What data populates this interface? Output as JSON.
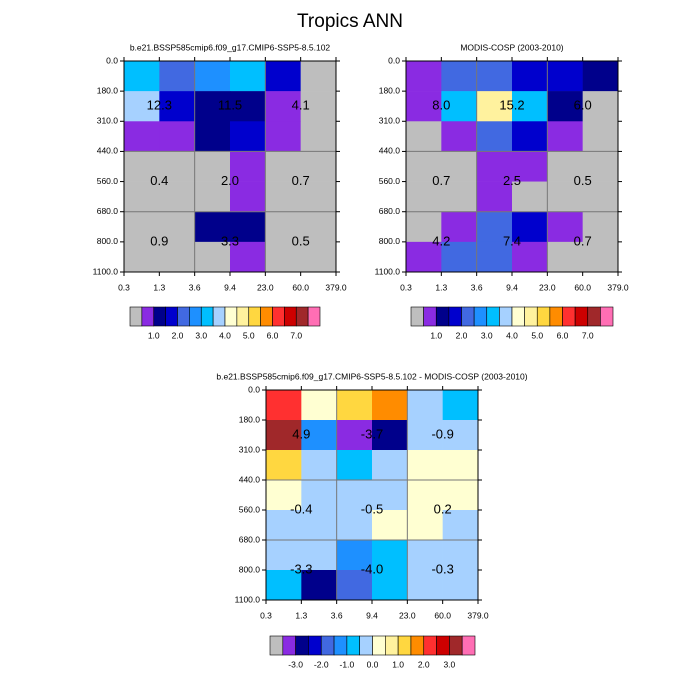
{
  "title": "Tropics ANN",
  "chart_data": [
    {
      "type": "heatmap",
      "title": "b.e21.BSSP585cmip6.f09_g17.CMIP6-SSP5-8.5.102",
      "xbins": [
        0.3,
        1.3,
        3.6,
        9.4,
        {
          "value": 23,
          "label": "23.0"
        },
        {
          "value": 60,
          "label": "60.0"
        },
        {
          "value": 379,
          "label": "379.0"
        }
      ],
      "ybins": [
        {
          "value": 0,
          "label": "0.0"
        },
        {
          "value": 180,
          "label": "180.0"
        },
        {
          "value": 310,
          "label": "310.0"
        },
        {
          "value": 440,
          "label": "440.0"
        },
        {
          "value": 560,
          "label": "560.0"
        },
        {
          "value": 680,
          "label": "680.0"
        },
        {
          "value": 800,
          "label": "800.0"
        },
        {
          "value": 1100,
          "label": "1100.0"
        }
      ],
      "values": [
        [
          3.2,
          2.2,
          2.7,
          3.2,
          1.7,
          0.3
        ],
        [
          3.7,
          1.7,
          1.3,
          1.4,
          0.8,
          0.2
        ],
        [
          0.8,
          0.7,
          1.2,
          1.7,
          0.7,
          0.3
        ],
        [
          0.1,
          0.1,
          0.2,
          0.7,
          0.2,
          0.1
        ],
        [
          0.1,
          0.1,
          0.3,
          0.8,
          0.2,
          0.2
        ],
        [
          0.2,
          0.3,
          1.2,
          1.2,
          0.1,
          0.1
        ],
        [
          0.2,
          0.2,
          0.4,
          0.5,
          0.2,
          0.1
        ]
      ],
      "sums": [
        [
          12.3,
          11.5,
          4.1
        ],
        [
          0.4,
          2.0,
          0.7
        ],
        [
          0.9,
          3.3,
          0.5
        ]
      ],
      "sum_labels": [
        [
          "12.3",
          "11.5",
          "4.1"
        ],
        [
          "0.4",
          "2.0",
          "0.7"
        ],
        [
          "0.9",
          "3.3",
          "0.5"
        ]
      ],
      "colorbar": {
        "levels": [
          0.5,
          1,
          1.5,
          2,
          2.5,
          3,
          3.5,
          4,
          4.5,
          5,
          5.5,
          6,
          6.5,
          7,
          7.5
        ],
        "colors": [
          "#bebebe",
          "#8a2be2",
          "#00008b",
          "#0000cd",
          "#4169e1",
          "#1e90ff",
          "#00bfff",
          "#a6d1ff",
          "#ffffd2",
          "#fff29e",
          "#ffd740",
          "#ff8c00",
          "#ff3030",
          "#cd0000",
          "#a0282a",
          "#ff6eb4"
        ],
        "ticks": [
          {
            "value": 1,
            "label": "1.0"
          },
          {
            "value": 2,
            "label": "2.0"
          },
          {
            "value": 3,
            "label": "3.0"
          },
          {
            "value": 4,
            "label": "4.0"
          },
          {
            "value": 5,
            "label": "5.0"
          },
          {
            "value": 6,
            "label": "6.0"
          },
          {
            "value": 7,
            "label": "7.0"
          }
        ]
      }
    },
    {
      "type": "heatmap",
      "title": "MODIS-COSP (2003-2010)",
      "xbins": [
        0.3,
        1.3,
        3.6,
        9.4,
        {
          "value": 23,
          "label": "23.0"
        },
        {
          "value": 60,
          "label": "60.0"
        },
        {
          "value": 379,
          "label": "379.0"
        }
      ],
      "ybins": [
        {
          "value": 0,
          "label": "0.0"
        },
        {
          "value": 180,
          "label": "180.0"
        },
        {
          "value": 310,
          "label": "310.0"
        },
        {
          "value": 440,
          "label": "440.0"
        },
        {
          "value": 560,
          "label": "560.0"
        },
        {
          "value": 680,
          "label": "680.0"
        },
        {
          "value": 800,
          "label": "800.0"
        },
        {
          "value": 1100,
          "label": "1100.0"
        }
      ],
      "values": [
        [
          0.8,
          2.2,
          2.1,
          1.6,
          1.8,
          1.4
        ],
        [
          0.8,
          3.2,
          4.6,
          3.2,
          1.2,
          0.4
        ],
        [
          0.3,
          0.7,
          2.1,
          1.6,
          0.8,
          0.4
        ],
        [
          0.2,
          0.2,
          0.7,
          0.6,
          0.1,
          0.1
        ],
        [
          0.1,
          0.2,
          0.8,
          0.4,
          0.2,
          0.1
        ],
        [
          0.3,
          0.8,
          2.2,
          1.9,
          0.5,
          0.1
        ],
        [
          0.8,
          2.3,
          2.4,
          0.9,
          0.1,
          0.0
        ]
      ],
      "sums": [
        [
          8.0,
          15.2,
          6.0
        ],
        [
          0.7,
          2.5,
          0.5
        ],
        [
          4.2,
          7.4,
          0.7
        ]
      ],
      "sum_labels": [
        [
          "8.0",
          "15.2",
          "6.0"
        ],
        [
          "0.7",
          "2.5",
          "0.5"
        ],
        [
          "4.2",
          "7.4",
          "0.7"
        ]
      ],
      "colorbar": {
        "levels": [
          0.5,
          1,
          1.5,
          2,
          2.5,
          3,
          3.5,
          4,
          4.5,
          5,
          5.5,
          6,
          6.5,
          7,
          7.5
        ],
        "colors": [
          "#bebebe",
          "#8a2be2",
          "#00008b",
          "#0000cd",
          "#4169e1",
          "#1e90ff",
          "#00bfff",
          "#a6d1ff",
          "#ffffd2",
          "#fff29e",
          "#ffd740",
          "#ff8c00",
          "#ff3030",
          "#cd0000",
          "#a0282a",
          "#ff6eb4"
        ],
        "ticks": [
          {
            "value": 1,
            "label": "1.0"
          },
          {
            "value": 2,
            "label": "2.0"
          },
          {
            "value": 3,
            "label": "3.0"
          },
          {
            "value": 4,
            "label": "4.0"
          },
          {
            "value": 5,
            "label": "5.0"
          },
          {
            "value": 6,
            "label": "6.0"
          },
          {
            "value": 7,
            "label": "7.0"
          }
        ]
      }
    },
    {
      "type": "heatmap",
      "title": "b.e21.BSSP585cmip6.f09_g17.CMIP6-SSP5-8.5.102 - MODIS-COSP (2003-2010)",
      "xbins": [
        0.3,
        1.3,
        3.6,
        9.4,
        {
          "value": 23,
          "label": "23.0"
        },
        {
          "value": 60,
          "label": "60.0"
        },
        {
          "value": 379,
          "label": "379.0"
        }
      ],
      "ybins": [
        {
          "value": 0,
          "label": "0.0"
        },
        {
          "value": 180,
          "label": "180.0"
        },
        {
          "value": 310,
          "label": "310.0"
        },
        {
          "value": 440,
          "label": "440.0"
        },
        {
          "value": 560,
          "label": "560.0"
        },
        {
          "value": 680,
          "label": "680.0"
        },
        {
          "value": 800,
          "label": "800.0"
        },
        {
          "value": 1100,
          "label": "1100.0"
        }
      ],
      "values": [
        [
          2.2,
          0.1,
          1.4,
          1.7,
          -0.2,
          -0.6
        ],
        [
          3.1,
          -1.2,
          -3.2,
          -2.7,
          -0.1,
          -0.2
        ],
        [
          1.0,
          -0.3,
          -0.7,
          -0.2,
          0.1,
          0.1
        ],
        [
          0.1,
          -0.2,
          -0.2,
          -0.2,
          0.1,
          0.1
        ],
        [
          -0.2,
          -0.1,
          -0.2,
          0.1,
          0.1,
          -0.1
        ],
        [
          -0.1,
          -0.1,
          -1.1,
          -0.6,
          -0.1,
          -0.1
        ],
        [
          -0.55,
          -2.55,
          -1.6,
          -0.7,
          -0.05,
          -0.05
        ]
      ],
      "sums": [
        [
          4.9,
          -3.7,
          -0.9
        ],
        [
          -0.4,
          -0.5,
          0.2
        ],
        [
          -3.3,
          -4.0,
          -0.3
        ]
      ],
      "sum_labels": [
        [
          "4.9",
          "-3.7",
          "-0.9"
        ],
        [
          "-0.4",
          "-0.5",
          "0.2"
        ],
        [
          "-3.3",
          "-4.0",
          "-0.3"
        ]
      ],
      "colorbar": {
        "levels": [
          -3.5,
          -3,
          -2.5,
          -2,
          -1.5,
          -1,
          -0.5,
          0,
          0.5,
          1,
          1.5,
          2,
          2.5,
          3,
          3.5
        ],
        "colors": [
          "#bebebe",
          "#8a2be2",
          "#00008b",
          "#0000cd",
          "#4169e1",
          "#1e90ff",
          "#00bfff",
          "#a6d1ff",
          "#ffffd2",
          "#fff29e",
          "#ffd740",
          "#ff8c00",
          "#ff3030",
          "#cd0000",
          "#a0282a",
          "#ff6eb4"
        ],
        "ticks": [
          {
            "value": -3,
            "label": "-3.0"
          },
          {
            "value": -2,
            "label": "-2.0"
          },
          {
            "value": -1,
            "label": "-1.0"
          },
          {
            "value": 0,
            "label": "0.0"
          },
          {
            "value": 1,
            "label": "1.0"
          },
          {
            "value": 2,
            "label": "2.0"
          },
          {
            "value": 3,
            "label": "3.0"
          }
        ]
      }
    }
  ]
}
